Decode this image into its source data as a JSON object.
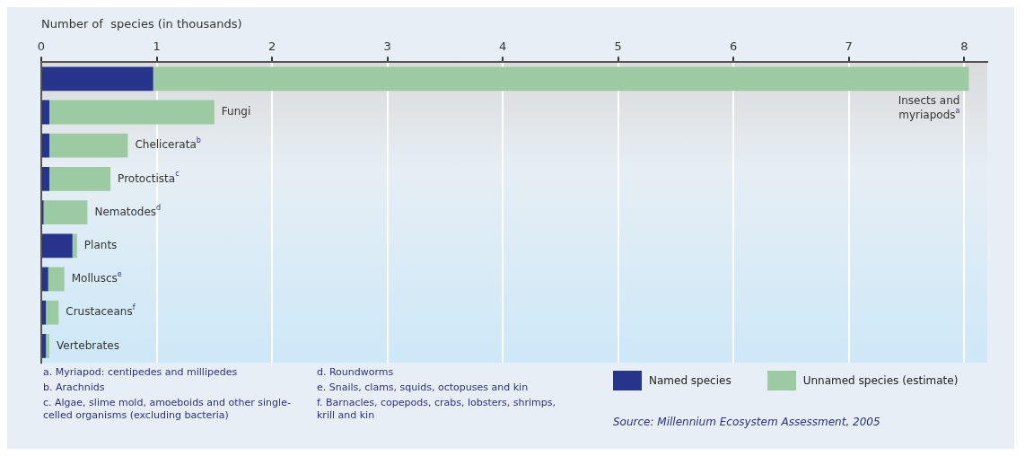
{
  "chart_data": {
    "type": "bar",
    "orientation": "horizontal",
    "stacked": true,
    "tick_labels": "x",
    "xlabel": "Number of  species (in thousands)",
    "categories": [
      "Insects and myriapods$^{a}$",
      "Fungi",
      "Chelicerata$^{b}$",
      "Protoctista$^{c}$",
      "Nematodes$^{d}$",
      "Plants",
      "Molluscs$^{e}$",
      "Crustaceans$^{f}$",
      "Vertebrates"
    ],
    "series": [
      {
        "name": "Named species",
        "color": "#26348b",
        "values": [
          0.97,
          0.07,
          0.07,
          0.07,
          0.02,
          0.27,
          0.06,
          0.04,
          0.04
        ]
      },
      {
        "name": "Unnamed species (estimate)",
        "color": "#9ccaa2",
        "values": [
          7.07,
          1.43,
          0.68,
          0.53,
          0.38,
          0.04,
          0.14,
          0.11,
          0.03
        ]
      }
    ],
    "xlim": [
      0,
      8.2
    ],
    "xticks": [
      0,
      1,
      2,
      3,
      4,
      5,
      6,
      7,
      8
    ],
    "grid": "x",
    "legend": "bottom right",
    "annotations": [
      "a.  Myriapod: centipedes and millipedes",
      "b.  Arachnids",
      "c.  Algae, slime mold, amoeboids and other single-celled organisms (excluding bacteria)",
      "d.  Roundworms",
      "e.  Snails, clams, squids, octopuses and kin",
      "f.  Barnacles, copepods, crabs, lobsters, shrimps, krill and kin",
      "Source: Millennium Ecosystem Assessment, 2005"
    ]
  }
}
